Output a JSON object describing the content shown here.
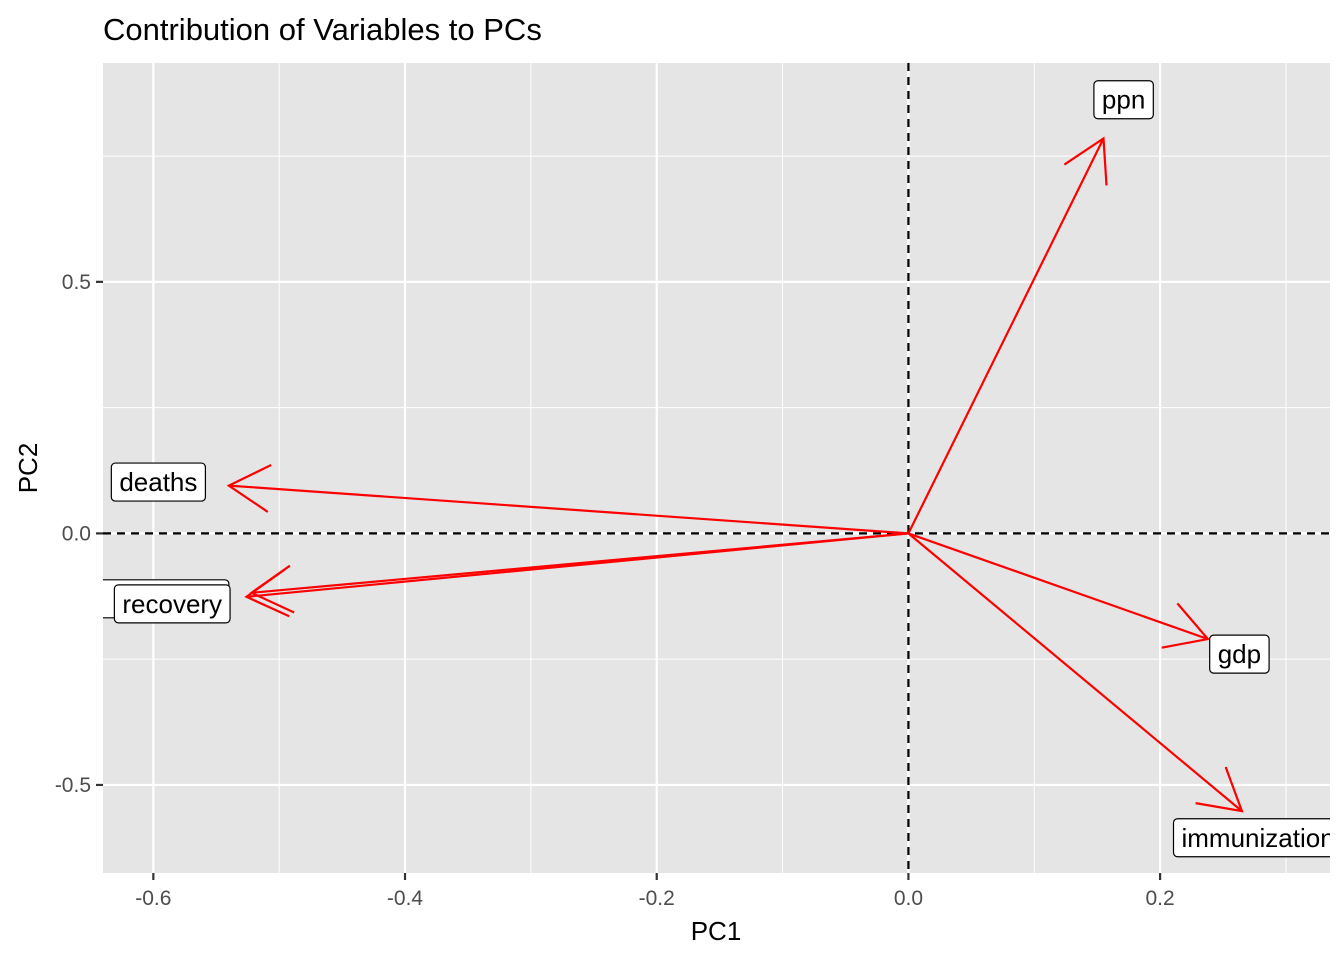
{
  "chart_data": {
    "type": "biplot-arrows",
    "title": "Contribution of Variables to PCs",
    "xlabel": "PC1",
    "ylabel": "PC2",
    "xlim": [
      -0.64,
      0.335
    ],
    "ylim": [
      -0.675,
      0.935
    ],
    "x_ticks": [
      {
        "value": -0.6,
        "label": "-0.6"
      },
      {
        "value": -0.4,
        "label": "-0.4"
      },
      {
        "value": -0.2,
        "label": "-0.2"
      },
      {
        "value": 0.0,
        "label": "0.0"
      },
      {
        "value": 0.2,
        "label": "0.2"
      }
    ],
    "y_ticks": [
      {
        "value": -0.5,
        "label": "-0.5"
      },
      {
        "value": 0.0,
        "label": "0.0"
      },
      {
        "value": 0.5,
        "label": "0.5"
      }
    ],
    "grid": true,
    "reference_lines": {
      "x": 0,
      "y": 0,
      "style": "dashed",
      "color": "#000000"
    },
    "arrow_color": "#ff0000",
    "panel_color": "#e5e5e5",
    "grid_color": "#ffffff",
    "vectors": [
      {
        "label": "ppn",
        "x": 0.155,
        "y": 0.785,
        "label_x": 0.171,
        "label_y": 0.862,
        "label_align": "middle"
      },
      {
        "label": "deaths",
        "x": -0.54,
        "y": 0.095,
        "label_x": -0.596,
        "label_y": 0.102,
        "label_align": "middle"
      },
      {
        "label": "",
        "x": -0.522,
        "y": -0.118,
        "label_x": -0.594,
        "label_y": -0.13,
        "label_align": "middle"
      },
      {
        "label": "recovery",
        "x": -0.526,
        "y": -0.126,
        "label_x": -0.585,
        "label_y": -0.14,
        "label_align": "middle"
      },
      {
        "label": "gdp",
        "x": 0.238,
        "y": -0.21,
        "label_x": 0.263,
        "label_y": -0.24,
        "label_align": "middle"
      },
      {
        "label": "immunization",
        "x": 0.265,
        "y": -0.552,
        "label_x": 0.217,
        "label_y": -0.605,
        "label_align": "start"
      }
    ]
  }
}
